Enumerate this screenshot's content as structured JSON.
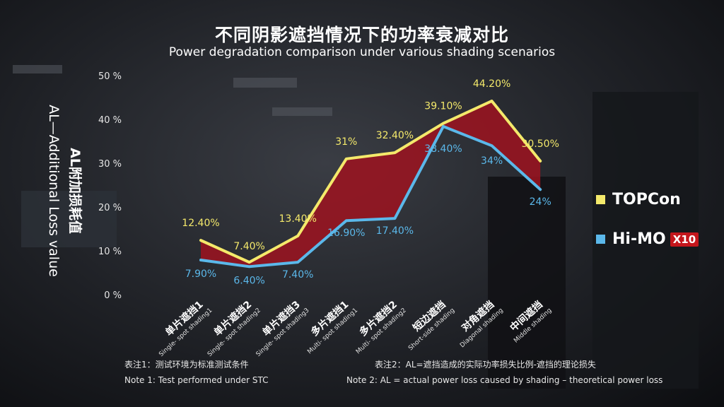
{
  "title": "不同阴影遮挡情况下的功率衰减对比",
  "subtitle": "Power degradation comparison under various shading scenarios",
  "colors": {
    "topcon": "#f4e96b",
    "himo": "#5bb8ea",
    "fill": "#9e1320"
  },
  "y_axis": {
    "label_cn": "AL附加损耗值",
    "label_en": "AL—Additional Loss value",
    "ticks": [
      "0 %",
      "10 %",
      "20 %",
      "30 %",
      "40 %",
      "50 %"
    ]
  },
  "legend": {
    "topcon": "TOPCon",
    "himo": "Hi-MO",
    "himo_badge": "X10"
  },
  "notes": {
    "note1_cn": "表注1：测试环境为标准测试条件",
    "note1_en": "Note 1: Test performed under STC",
    "note2_cn": "表注2：AL=遮挡造成的实际功率损失比例-遮挡的理论损失",
    "note2_en": "Note 2: AL = actual power loss caused by shading – theoretical power loss"
  },
  "chart_data": {
    "type": "line",
    "ylim": [
      0,
      50
    ],
    "grid": false,
    "categories": [
      {
        "cn": "单片遮挡1",
        "en": "Single- spot shading1"
      },
      {
        "cn": "单片遮挡2",
        "en": "Single- spot shading2"
      },
      {
        "cn": "单片遮挡3",
        "en": "Single- spot shading3"
      },
      {
        "cn": "多片遮挡1",
        "en": "Multi- spot shading1"
      },
      {
        "cn": "多片遮挡2",
        "en": "Multi- spot shading2"
      },
      {
        "cn": "短边遮挡",
        "en": "Short-side shading"
      },
      {
        "cn": "对角遮挡",
        "en": "Diagonal shading"
      },
      {
        "cn": "中间遮挡",
        "en": "Middle shading"
      }
    ],
    "series": [
      {
        "name": "TOPCon",
        "values": [
          12.4,
          7.4,
          13.4,
          31,
          32.4,
          39.1,
          44.2,
          30.5
        ],
        "labels": [
          "12.40%",
          "7.40%",
          "13.40%",
          "31%",
          "32.40%",
          "39.10%",
          "44.20%",
          "30.50%"
        ]
      },
      {
        "name": "Hi-MO X10",
        "values": [
          7.9,
          6.4,
          7.4,
          16.9,
          17.4,
          38.4,
          34,
          24
        ],
        "labels": [
          "7.90%",
          "6.40%",
          "7.40%",
          "16.90%",
          "17.40%",
          "38.40%",
          "34%",
          "24%"
        ]
      }
    ]
  }
}
